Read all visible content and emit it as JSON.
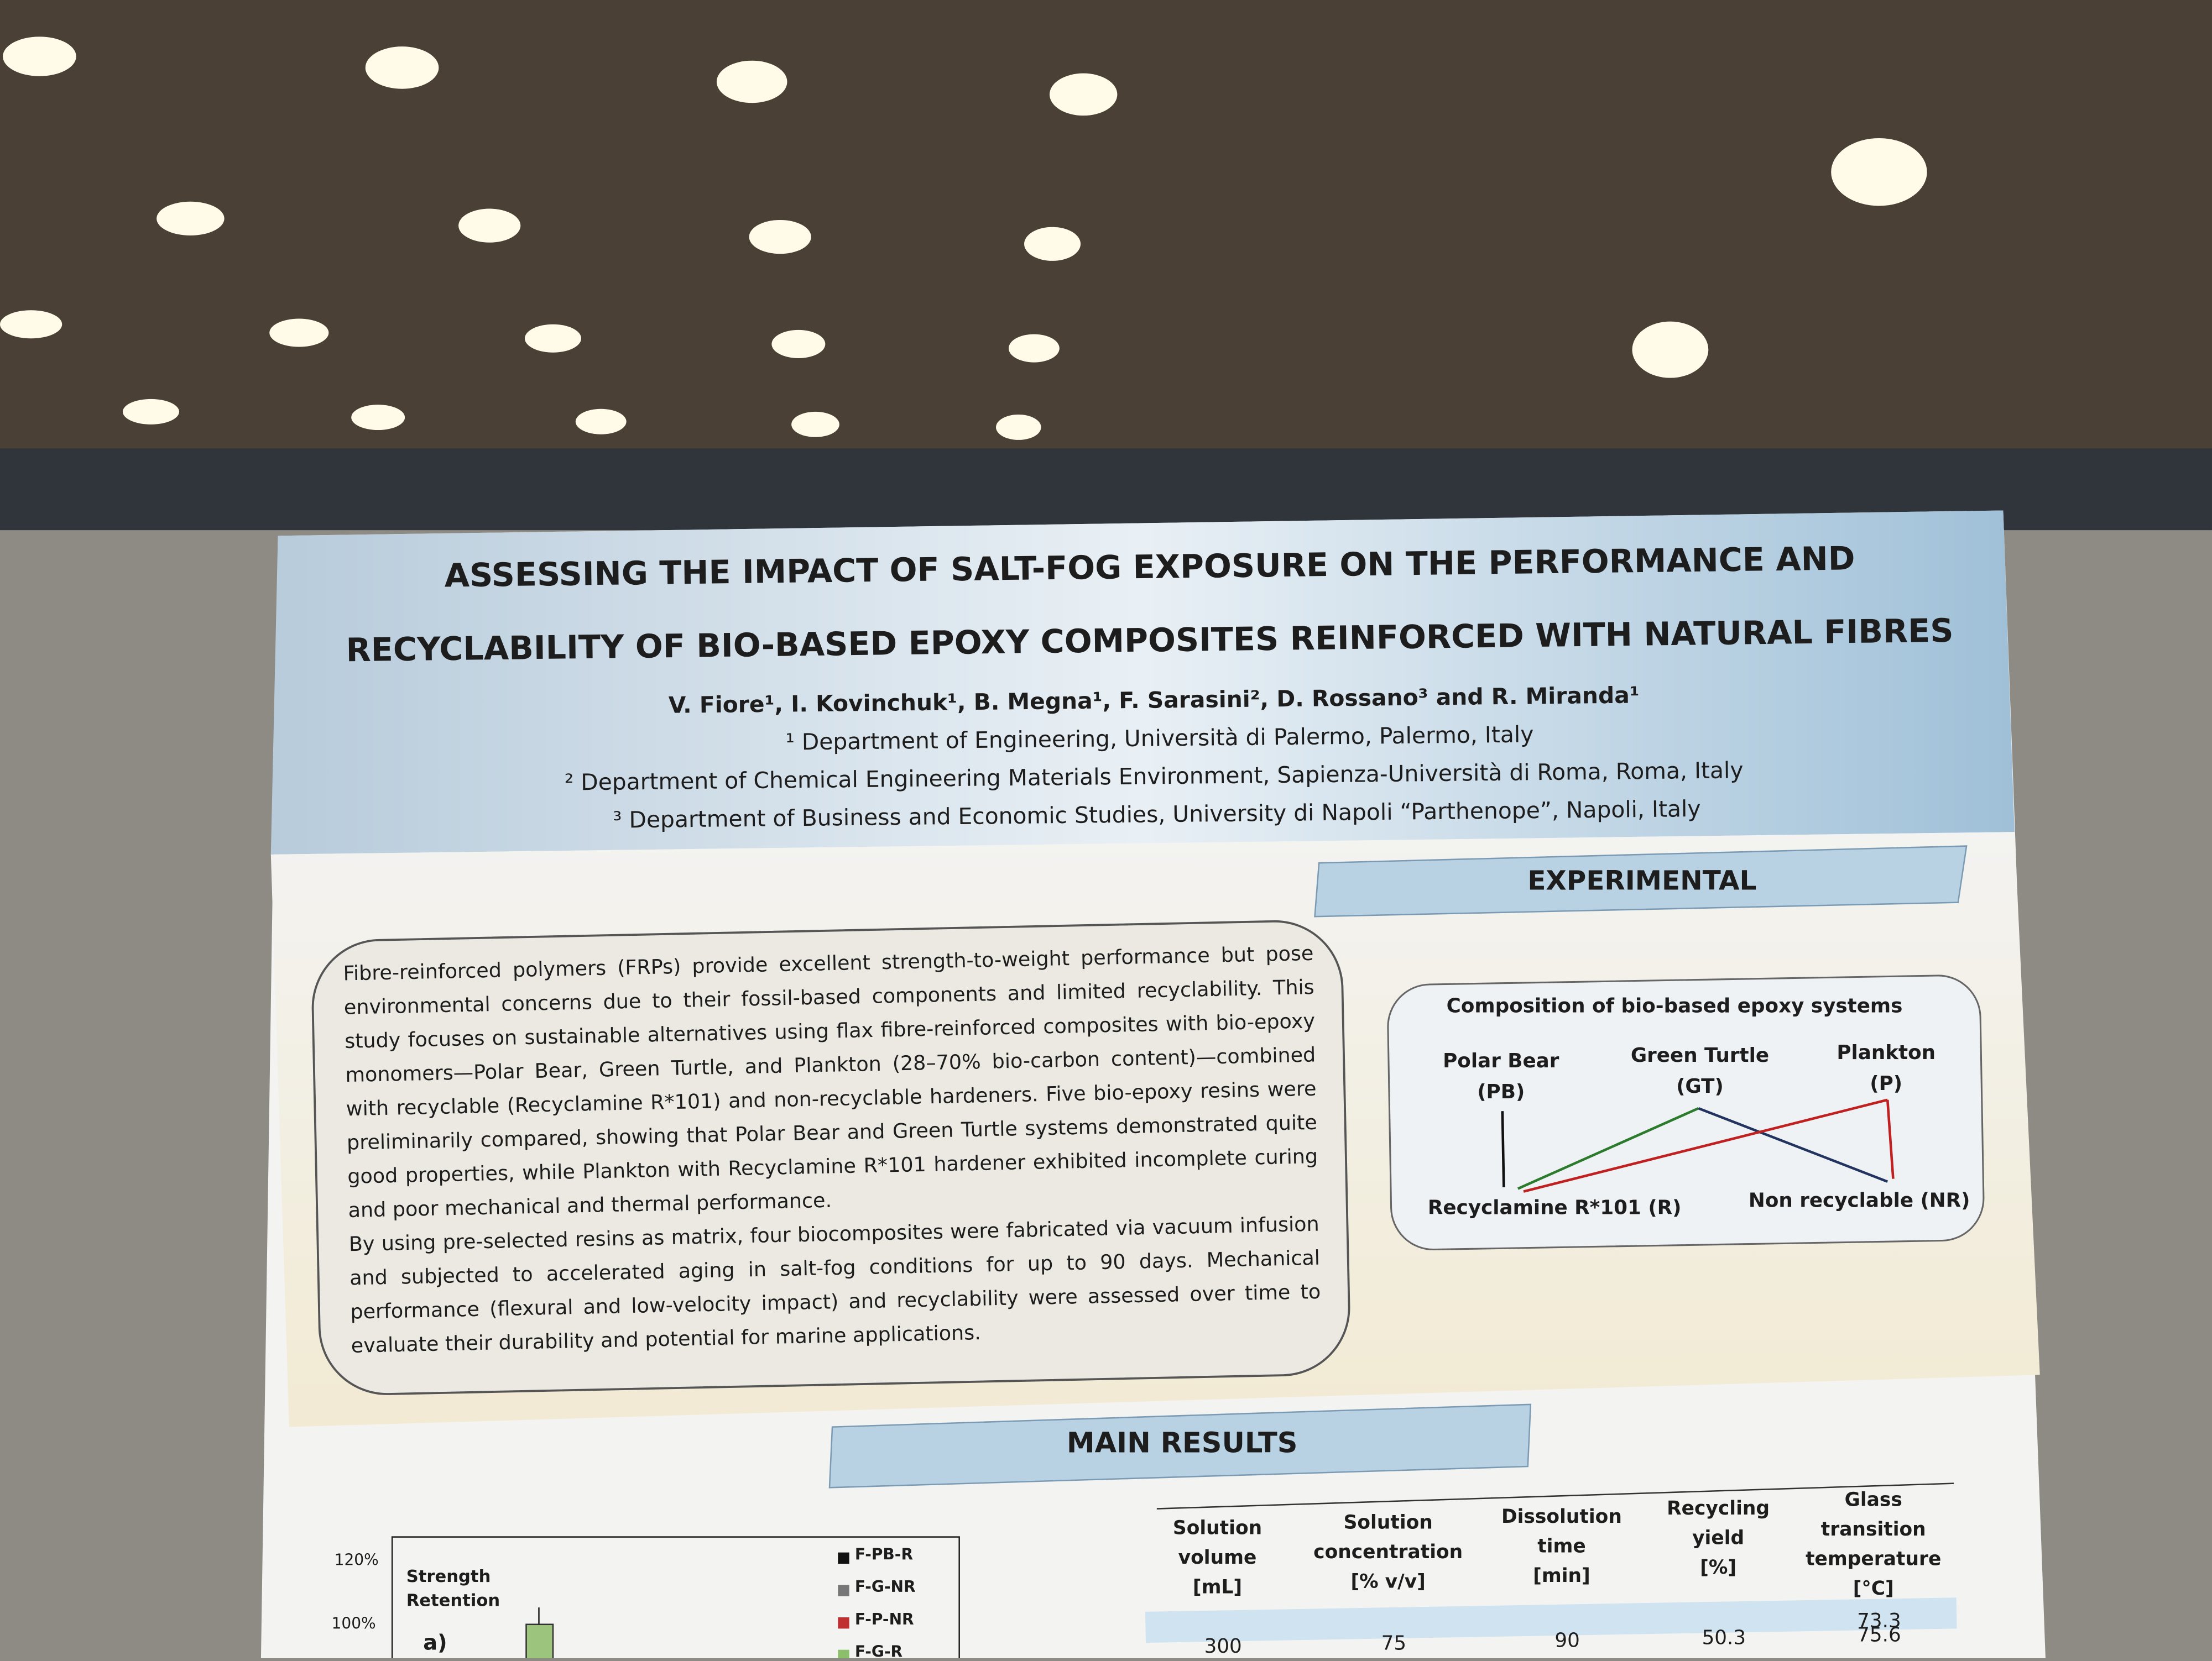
{
  "header": {
    "title_lines": [
      "ASSESSING THE IMPACT OF SALT-FOG EXPOSURE ON THE PERFORMANCE AND",
      "RECYCLABILITY OF BIO-BASED EPOXY COMPOSITES REINFORCED WITH NATURAL FIBRES"
    ],
    "authors": "V. Fiore¹, I. Kovinchuk¹, B. Megna¹, F. Sarasini², D. Rossano³ and R. Miranda¹",
    "affiliations": [
      "¹ Department of Engineering, Università di Palermo, Palermo, Italy",
      "² Department of Chemical Engineering Materials Environment, Sapienza-Università di Roma, Roma, Italy",
      "³ Department of Business and Economic Studies, University di Napoli “Parthenope”, Napoli, Italy"
    ]
  },
  "intro": {
    "paragraphs": [
      "Fibre-reinforced polymers (FRPs) provide excellent strength-to-weight performance but pose environmental concerns due to their fossil-based components and limited recyclability. This study focuses on sustainable alternatives using flax fibre-reinforced composites with bio-epoxy monomers—Polar Bear, Green Turtle, and Plankton (28–70% bio-carbon content)—combined with recyclable (Recyclamine R*101) and non-recyclable hardeners. Five bio-epoxy resins were preliminarily compared, showing that Polar Bear and Green Turtle systems demonstrated quite good properties, while Plankton with Recyclamine R*101 hardener exhibited incomplete curing and poor mechanical and thermal performance.",
      "By using pre-selected resins as matrix, four biocomposites were fabricated via vacuum infusion and subjected to accelerated aging in salt-fog conditions for up to 90 days. Mechanical performance (flexural and low-velocity impact) and recyclability were assessed over time to evaluate their durability and potential for marine applications."
    ]
  },
  "experimental": {
    "heading": "EXPERIMENTAL",
    "diagram": {
      "title": "Composition of bio-based epoxy systems",
      "monomers": [
        [
          "Polar Bear",
          "(PB)"
        ],
        [
          "Green Turtle",
          "(GT)"
        ],
        [
          "Plankton",
          "(P)"
        ]
      ],
      "hardeners": [
        "Recyclamine R*101 (R)",
        "Non recyclable (NR)"
      ]
    }
  },
  "results": {
    "heading": "MAIN RESULTS",
    "chart": {
      "ytick_labels": [
        "120%",
        "100%"
      ],
      "label": "Strength Retention",
      "panel": "a)",
      "legend": [
        "F-PB-R",
        "F-G-NR",
        "F-P-NR",
        "F-G-R"
      ]
    },
    "table": {
      "headers": [
        [
          "Solution",
          "volume",
          "[mL]"
        ],
        [
          "Solution",
          "concentration",
          "[% v/v]"
        ],
        [
          "Dissolution",
          "time",
          "[min]"
        ],
        [
          "Recycling",
          "yield",
          "[%]"
        ],
        [
          "Glass",
          "transition",
          "temperature",
          "[°C]"
        ]
      ],
      "first_value": "73.3",
      "row": [
        "300",
        "75",
        "90",
        "50.3",
        "75.6"
      ]
    }
  }
}
